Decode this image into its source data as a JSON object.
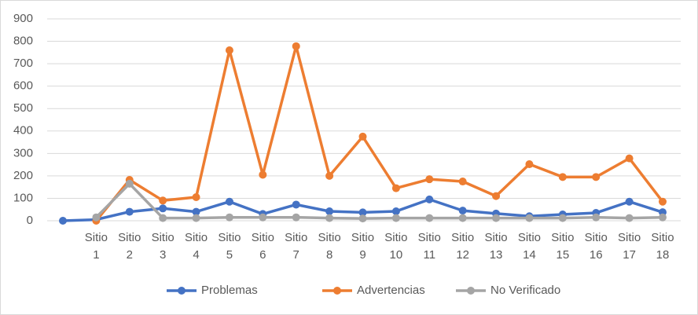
{
  "chart_data": {
    "type": "line",
    "categories": [
      null,
      "Sitio 1",
      "Sitio 2",
      "Sitio 3",
      "Sitio 4",
      "Sitio 5",
      "Sitio 6",
      "Sitio 7",
      "Sitio 8",
      "Sitio 9",
      "Sitio 10",
      "Sitio 11",
      "Sitio 12",
      "Sitio 13",
      "Sitio 14",
      "Sitio 15",
      "Sitio 16",
      "Sitio 17",
      "Sitio 18"
    ],
    "series": [
      {
        "name": "Problemas",
        "color": "#4472c4",
        "values": [
          0,
          5,
          40,
          55,
          40,
          85,
          30,
          72,
          42,
          37,
          42,
          95,
          45,
          32,
          20,
          28,
          35,
          85,
          38
        ]
      },
      {
        "name": "Advertencias",
        "color": "#ed7d31",
        "values": [
          null,
          0,
          182,
          90,
          105,
          760,
          205,
          778,
          200,
          375,
          145,
          185,
          175,
          110,
          252,
          195,
          195,
          278,
          85
        ]
      },
      {
        "name": "No Verificado",
        "color": "#a5a5a5",
        "values": [
          null,
          15,
          165,
          12,
          12,
          15,
          15,
          15,
          12,
          10,
          12,
          12,
          12,
          12,
          12,
          12,
          15,
          12,
          15
        ]
      }
    ],
    "ylim": [
      0,
      900
    ],
    "yticks": [
      0,
      100,
      200,
      300,
      400,
      500,
      600,
      700,
      800,
      900
    ],
    "grid": true,
    "legend": "bottom"
  }
}
